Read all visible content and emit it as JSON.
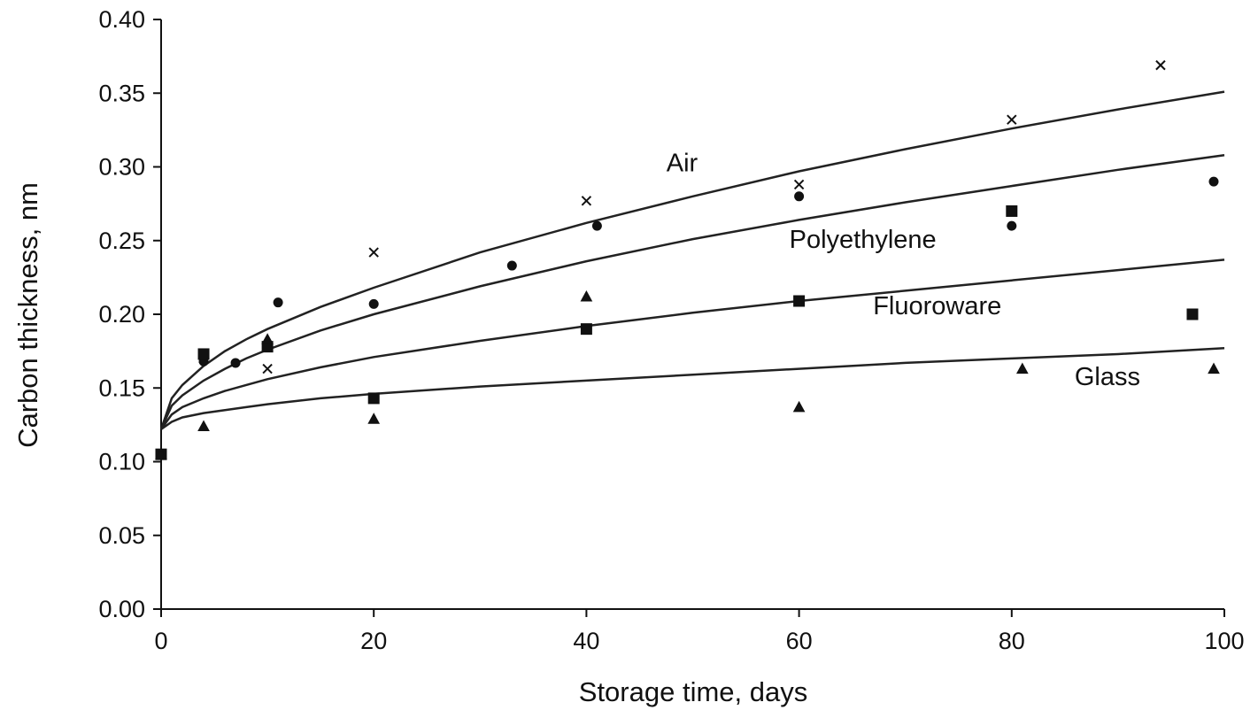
{
  "chart_data": {
    "type": "scatter",
    "title": "",
    "xlabel": "Storage time, days",
    "ylabel": "Carbon thickness, nm",
    "xlim": [
      0,
      100
    ],
    "ylim": [
      0,
      0.4
    ],
    "xticks": [
      0,
      20,
      40,
      60,
      80,
      100
    ],
    "xtick_labels": [
      "0",
      "20",
      "40",
      "60",
      "80",
      "100"
    ],
    "yticks": [
      0,
      0.05,
      0.1,
      0.15,
      0.2,
      0.25,
      0.3,
      0.35,
      0.4
    ],
    "ytick_labels": [
      "0.00",
      "0.05",
      "0.10",
      "0.15",
      "0.20",
      "0.25",
      "0.30",
      "0.35",
      "0.40"
    ],
    "grid": false,
    "legend": "none",
    "series": [
      {
        "name": "Air",
        "marker": "x",
        "points": [
          [
            0,
            0.105
          ],
          [
            4,
            0.17
          ],
          [
            10,
            0.163
          ],
          [
            20,
            0.242
          ],
          [
            40,
            0.277
          ],
          [
            60,
            0.288
          ],
          [
            80,
            0.332
          ],
          [
            94,
            0.369
          ]
        ],
        "fit": [
          [
            0,
            0.122
          ],
          [
            1,
            0.143
          ],
          [
            2,
            0.152
          ],
          [
            4,
            0.165
          ],
          [
            6,
            0.175
          ],
          [
            8,
            0.183
          ],
          [
            10,
            0.19
          ],
          [
            15,
            0.205
          ],
          [
            20,
            0.218
          ],
          [
            30,
            0.242
          ],
          [
            40,
            0.262
          ],
          [
            50,
            0.28
          ],
          [
            60,
            0.297
          ],
          [
            70,
            0.312
          ],
          [
            80,
            0.326
          ],
          [
            90,
            0.339
          ],
          [
            100,
            0.351
          ]
        ]
      },
      {
        "name": "Polyethylene",
        "marker": "circle",
        "points": [
          [
            0,
            0.105
          ],
          [
            4,
            0.168
          ],
          [
            7,
            0.167
          ],
          [
            11,
            0.208
          ],
          [
            20,
            0.207
          ],
          [
            33,
            0.233
          ],
          [
            41,
            0.26
          ],
          [
            60,
            0.28
          ],
          [
            80,
            0.26
          ],
          [
            99,
            0.29
          ]
        ],
        "fit": [
          [
            0,
            0.122
          ],
          [
            1,
            0.138
          ],
          [
            2,
            0.145
          ],
          [
            4,
            0.155
          ],
          [
            6,
            0.163
          ],
          [
            8,
            0.17
          ],
          [
            10,
            0.176
          ],
          [
            15,
            0.189
          ],
          [
            20,
            0.2
          ],
          [
            30,
            0.219
          ],
          [
            40,
            0.236
          ],
          [
            50,
            0.251
          ],
          [
            60,
            0.264
          ],
          [
            70,
            0.276
          ],
          [
            80,
            0.287
          ],
          [
            90,
            0.298
          ],
          [
            100,
            0.308
          ]
        ]
      },
      {
        "name": "Fluoroware",
        "marker": "square",
        "points": [
          [
            0,
            0.105
          ],
          [
            4,
            0.173
          ],
          [
            10,
            0.178
          ],
          [
            20,
            0.143
          ],
          [
            40,
            0.19
          ],
          [
            60,
            0.209
          ],
          [
            80,
            0.27
          ],
          [
            97,
            0.2
          ]
        ],
        "fit": [
          [
            0,
            0.122
          ],
          [
            1,
            0.132
          ],
          [
            2,
            0.137
          ],
          [
            4,
            0.143
          ],
          [
            6,
            0.148
          ],
          [
            8,
            0.152
          ],
          [
            10,
            0.156
          ],
          [
            15,
            0.164
          ],
          [
            20,
            0.171
          ],
          [
            30,
            0.182
          ],
          [
            40,
            0.192
          ],
          [
            50,
            0.201
          ],
          [
            60,
            0.209
          ],
          [
            70,
            0.216
          ],
          [
            80,
            0.223
          ],
          [
            90,
            0.23
          ],
          [
            100,
            0.237
          ]
        ]
      },
      {
        "name": "Glass",
        "marker": "triangle",
        "points": [
          [
            0,
            0.105
          ],
          [
            4,
            0.124
          ],
          [
            10,
            0.183
          ],
          [
            20,
            0.129
          ],
          [
            40,
            0.212
          ],
          [
            60,
            0.137
          ],
          [
            81,
            0.163
          ],
          [
            99,
            0.163
          ]
        ],
        "fit": [
          [
            0,
            0.122
          ],
          [
            1,
            0.127
          ],
          [
            2,
            0.13
          ],
          [
            4,
            0.133
          ],
          [
            6,
            0.135
          ],
          [
            8,
            0.137
          ],
          [
            10,
            0.139
          ],
          [
            15,
            0.143
          ],
          [
            20,
            0.146
          ],
          [
            30,
            0.151
          ],
          [
            40,
            0.155
          ],
          [
            50,
            0.159
          ],
          [
            60,
            0.163
          ],
          [
            70,
            0.167
          ],
          [
            80,
            0.17
          ],
          [
            90,
            0.173
          ],
          [
            100,
            0.177
          ]
        ]
      }
    ],
    "annotations": [
      {
        "text": "Air",
        "x": 49,
        "y": 0.297
      },
      {
        "text": "Polyethylene",
        "x": 66,
        "y": 0.245
      },
      {
        "text": "Fluoroware",
        "x": 73,
        "y": 0.2
      },
      {
        "text": "Glass",
        "x": 89,
        "y": 0.152
      }
    ]
  }
}
